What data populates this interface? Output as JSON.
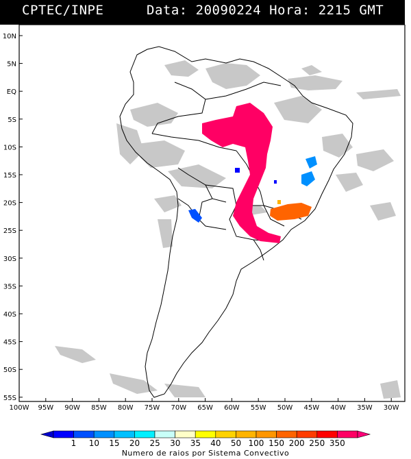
{
  "header": {
    "source": "CPTEC/INPE",
    "datetime": "Data: 20090224 Hora: 2215 GMT"
  },
  "map": {
    "lat_labels": [
      "10N",
      "5N",
      "EQ",
      "5S",
      "10S",
      "15S",
      "20S",
      "25S",
      "30S",
      "35S",
      "40S",
      "45S",
      "50S",
      "55S"
    ],
    "lon_labels": [
      "100W",
      "95W",
      "90W",
      "85W",
      "80W",
      "75W",
      "70W",
      "65W",
      "60W",
      "55W",
      "50W",
      "45W",
      "40W",
      "35W",
      "30W"
    ],
    "extent": {
      "lon_min": -100,
      "lon_max": -28,
      "lat_min": -56,
      "lat_max": 13
    }
  },
  "legend": {
    "title": "Numero de raios por Sistema Convectivo",
    "values": [
      "1",
      "10",
      "15",
      "20",
      "25",
      "30",
      "35",
      "40",
      "50",
      "100",
      "150",
      "200",
      "250",
      "350"
    ],
    "colors": [
      "#0000ff",
      "#0050ff",
      "#0090ff",
      "#00c0ff",
      "#00f0ff",
      "#c8fff8",
      "#ffffc8",
      "#ffff00",
      "#ffd200",
      "#ffb400",
      "#ff9600",
      "#ff6400",
      "#ff3c00",
      "#ff0000",
      "#ff0064"
    ],
    "min_color": "#0000cc",
    "max_color": "#ff0078"
  }
}
